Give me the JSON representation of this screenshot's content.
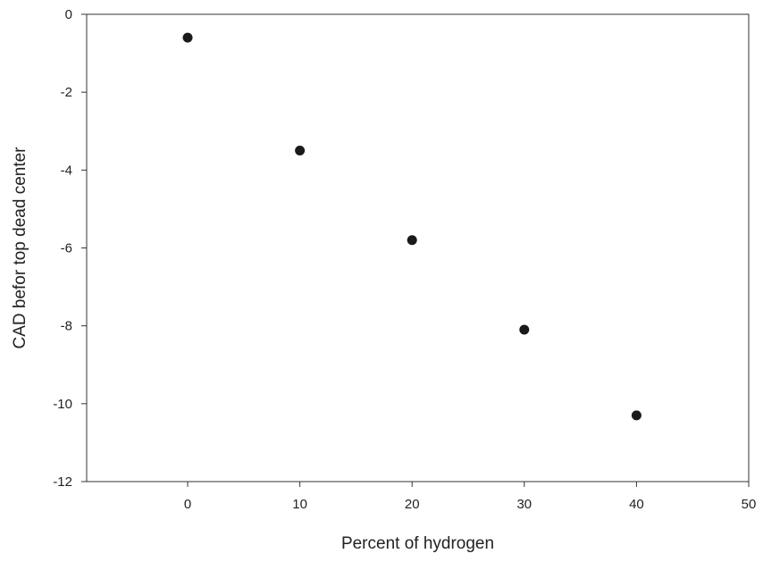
{
  "chart_data": {
    "type": "scatter",
    "title": "",
    "xlabel": "Percent of hydrogen",
    "ylabel": "CAD befor top dead center",
    "xlim": [
      -9,
      50
    ],
    "ylim": [
      -12,
      0
    ],
    "xticks": [
      0,
      10,
      20,
      30,
      40,
      50
    ],
    "yticks": [
      0,
      -2,
      -4,
      -6,
      -8,
      -10,
      -12
    ],
    "grid": false,
    "legend": "none",
    "series": [
      {
        "x": [
          0,
          10,
          20,
          30,
          40
        ],
        "y": [
          -0.6,
          -3.5,
          -5.8,
          -8.1,
          -10.3
        ]
      }
    ],
    "marker_color": "#1a1a1a",
    "axis_color": "#333333"
  }
}
